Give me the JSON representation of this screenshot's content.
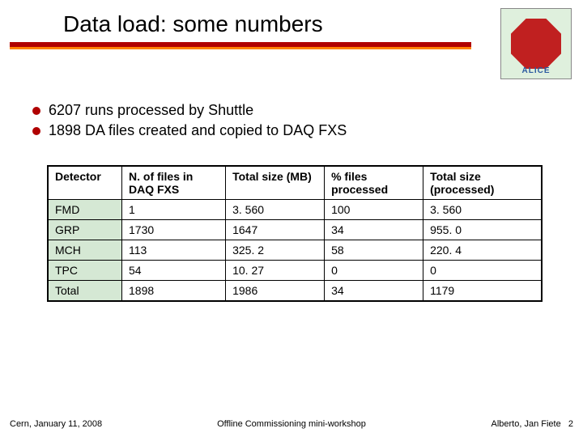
{
  "title": "Data load: some numbers",
  "logo_label": "ALICE",
  "colors": {
    "underline_primary": "#b00000",
    "underline_secondary": "#ff8000",
    "bullet": "#b00000",
    "detector_cell_bg": "#d5e8d4"
  },
  "bullets": [
    "6207 runs processed by Shuttle",
    "1898 DA files created and copied to DAQ FXS"
  ],
  "table": {
    "columns": [
      "Detector",
      "N. of files in DAQ FXS",
      "Total size (MB)",
      "% files processed",
      "Total size (processed)"
    ],
    "col_widths_pct": [
      15,
      21,
      20,
      20,
      24
    ],
    "rows": [
      [
        "FMD",
        "1",
        "3. 560",
        "100",
        "3. 560"
      ],
      [
        "GRP",
        "1730",
        "1647",
        "34",
        "955. 0"
      ],
      [
        "MCH",
        "113",
        "325. 2",
        "58",
        "220. 4"
      ],
      [
        "TPC",
        "54",
        "10. 27",
        "0",
        "0"
      ],
      [
        "Total",
        "1898",
        "1986",
        "34",
        "1179"
      ]
    ]
  },
  "footer": {
    "left": "Cern, January 11, 2008",
    "center": "Offline Commissioning mini-workshop",
    "right_text": "Alberto, Jan Fiete",
    "right_page": "2"
  }
}
